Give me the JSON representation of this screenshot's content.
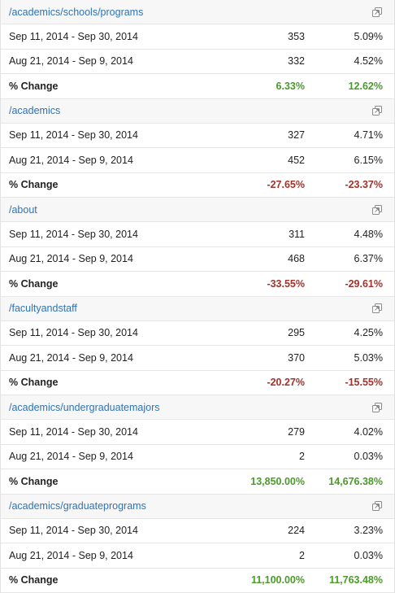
{
  "colors": {
    "link": "#2e73b8",
    "positive": "#4b9a2b",
    "negative": "#a3322b",
    "header_bg": "#f7f7f7"
  },
  "icons": {
    "open_page": "external-link-icon"
  },
  "groups": [
    {
      "page": "/academics/schools/programs",
      "rows": [
        {
          "range": "Sep 11, 2014 - Sep 30, 2014",
          "value": "353",
          "pct": "5.09%"
        },
        {
          "range": "Aug 21, 2014 - Sep 9, 2014",
          "value": "332",
          "pct": "4.52%"
        }
      ],
      "change": {
        "label": "% Change",
        "value": "6.33%",
        "pct": "12.62%",
        "value_sign": "pos",
        "pct_sign": "pos"
      }
    },
    {
      "page": "/academics",
      "rows": [
        {
          "range": "Sep 11, 2014 - Sep 30, 2014",
          "value": "327",
          "pct": "4.71%"
        },
        {
          "range": "Aug 21, 2014 - Sep 9, 2014",
          "value": "452",
          "pct": "6.15%"
        }
      ],
      "change": {
        "label": "% Change",
        "value": "-27.65%",
        "pct": "-23.37%",
        "value_sign": "neg",
        "pct_sign": "neg"
      }
    },
    {
      "page": "/about",
      "rows": [
        {
          "range": "Sep 11, 2014 - Sep 30, 2014",
          "value": "311",
          "pct": "4.48%"
        },
        {
          "range": "Aug 21, 2014 - Sep 9, 2014",
          "value": "468",
          "pct": "6.37%"
        }
      ],
      "change": {
        "label": "% Change",
        "value": "-33.55%",
        "pct": "-29.61%",
        "value_sign": "neg",
        "pct_sign": "neg"
      }
    },
    {
      "page": "/facultyandstaff",
      "rows": [
        {
          "range": "Sep 11, 2014 - Sep 30, 2014",
          "value": "295",
          "pct": "4.25%"
        },
        {
          "range": "Aug 21, 2014 - Sep 9, 2014",
          "value": "370",
          "pct": "5.03%"
        }
      ],
      "change": {
        "label": "% Change",
        "value": "-20.27%",
        "pct": "-15.55%",
        "value_sign": "neg",
        "pct_sign": "neg"
      }
    },
    {
      "page": "/academics/undergraduatemajors",
      "rows": [
        {
          "range": "Sep 11, 2014 - Sep 30, 2014",
          "value": "279",
          "pct": "4.02%"
        },
        {
          "range": "Aug 21, 2014 - Sep 9, 2014",
          "value": "2",
          "pct": "0.03%"
        }
      ],
      "change": {
        "label": "% Change",
        "value": "13,850.00%",
        "pct": "14,676.38%",
        "value_sign": "pos",
        "pct_sign": "pos"
      }
    },
    {
      "page": "/academics/graduateprograms",
      "rows": [
        {
          "range": "Sep 11, 2014 - Sep 30, 2014",
          "value": "224",
          "pct": "3.23%"
        },
        {
          "range": "Aug 21, 2014 - Sep 9, 2014",
          "value": "2",
          "pct": "0.03%"
        }
      ],
      "change": {
        "label": "% Change",
        "value": "11,100.00%",
        "pct": "11,763.48%",
        "value_sign": "pos",
        "pct_sign": "pos"
      }
    }
  ]
}
